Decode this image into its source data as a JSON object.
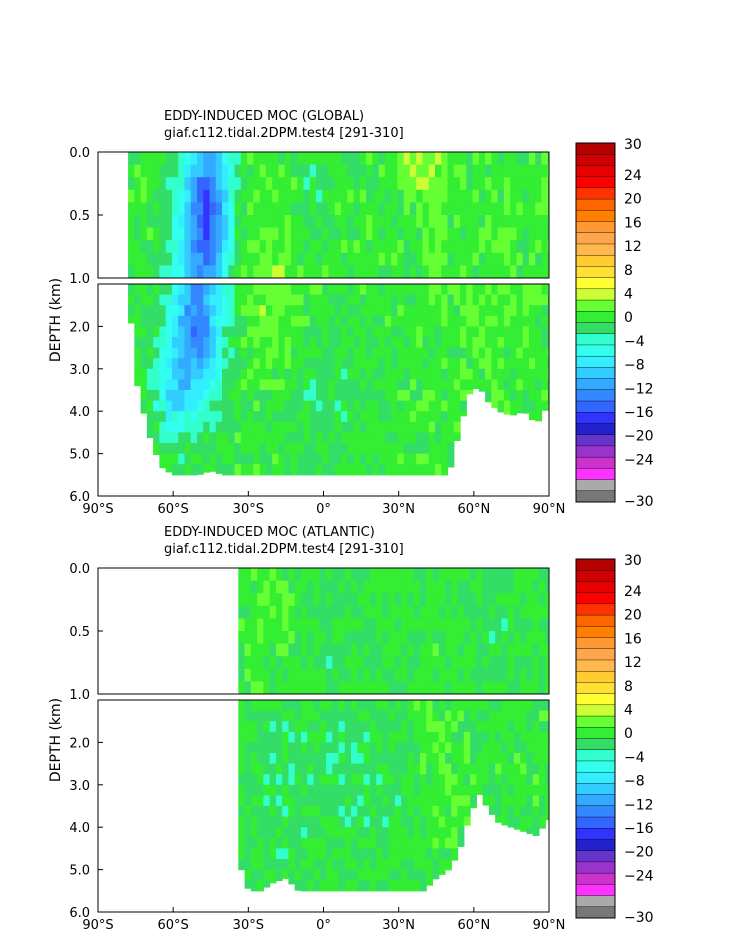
{
  "chart_data": [
    {
      "type": "heatmap",
      "title": "EDDY-INDUCED MOC (GLOBAL)",
      "subtitle": "giaf.c112.tidal.2DPM.test4 [291-310]",
      "ylabel": "DEPTH (km)",
      "xlabel": "",
      "x_ticks": [
        "90°S",
        "60°S",
        "30°S",
        "0°",
        "30°N",
        "60°N",
        "90°N"
      ],
      "upper_y_ticks": [
        "0.0",
        "0.5",
        "1.0"
      ],
      "lower_y_ticks": [
        "2.0",
        "3.0",
        "4.0",
        "5.0",
        "6.0"
      ],
      "xlim": [
        -90,
        90
      ],
      "ylim_upper_km": [
        0,
        1
      ],
      "ylim_lower_km": [
        1,
        6
      ],
      "colorbar": {
        "labels": [
          "30",
          "24",
          "20",
          "16",
          "12",
          "8",
          "4",
          "0",
          "-4",
          "-8",
          "-12",
          "-16",
          "-20",
          "-24",
          "-30"
        ],
        "min": -30,
        "max": 30
      },
      "ocean_extent": {
        "lat": [
          -78,
          -75,
          -70,
          -65,
          -60,
          -55,
          -50,
          -45,
          -40,
          -35,
          -30,
          -20,
          -10,
          0,
          10,
          20,
          30,
          40,
          50,
          54,
          58,
          62,
          66,
          70,
          75,
          80,
          85,
          90
        ],
        "bottom_km": [
          1.0,
          3.2,
          4.5,
          5.3,
          5.5,
          5.5,
          5.5,
          5.4,
          5.5,
          5.5,
          5.5,
          5.5,
          5.5,
          5.5,
          5.5,
          5.5,
          5.5,
          5.5,
          5.5,
          4.5,
          3.6,
          3.4,
          3.8,
          4.0,
          4.1,
          4.0,
          4.3,
          3.8
        ]
      },
      "features": [
        {
          "lat": -50,
          "depth_km": 1.9,
          "lat_halfwidth": 10,
          "depth_halfwidth": 1.9,
          "value": -13
        },
        {
          "lat": -45,
          "depth_km": 0.4,
          "lat_halfwidth": 8,
          "depth_halfwidth": 0.5,
          "value": -10
        },
        {
          "lat": -60,
          "depth_km": 3.5,
          "lat_halfwidth": 8,
          "depth_halfwidth": 1.2,
          "value": -6
        },
        {
          "lat": -20,
          "depth_km": 1.8,
          "lat_halfwidth": 12,
          "depth_halfwidth": 1.5,
          "value": 2.5
        },
        {
          "lat": 38,
          "depth_km": 0.15,
          "lat_halfwidth": 8,
          "depth_halfwidth": 0.25,
          "value": 3
        },
        {
          "lat": 45,
          "depth_km": 0.8,
          "lat_halfwidth": 6,
          "depth_halfwidth": 1.2,
          "value": 1.5
        },
        {
          "lat": 0,
          "depth_km": 3.5,
          "lat_halfwidth": 20,
          "depth_halfwidth": 1.8,
          "value": -1.5
        },
        {
          "lat": 70,
          "depth_km": 1.5,
          "lat_halfwidth": 15,
          "depth_halfwidth": 1.5,
          "value": 1
        },
        {
          "lat": -5,
          "depth_km": 0.3,
          "lat_halfwidth": 6,
          "depth_halfwidth": 0.4,
          "value": -2
        }
      ],
      "background_value": 0.7
    },
    {
      "type": "heatmap",
      "title": "EDDY-INDUCED MOC (ATLANTIC)",
      "subtitle": "giaf.c112.tidal.2DPM.test4 [291-310]",
      "ylabel": "DEPTH (km)",
      "xlabel": "",
      "x_ticks": [
        "90°S",
        "60°S",
        "30°S",
        "0°",
        "30°N",
        "60°N",
        "90°N"
      ],
      "upper_y_ticks": [
        "0.0",
        "0.5",
        "1.0"
      ],
      "lower_y_ticks": [
        "2.0",
        "3.0",
        "4.0",
        "5.0",
        "6.0"
      ],
      "xlim": [
        -90,
        90
      ],
      "ylim_upper_km": [
        0,
        1
      ],
      "ylim_lower_km": [
        1,
        6
      ],
      "colorbar": {
        "labels": [
          "30",
          "24",
          "20",
          "16",
          "12",
          "8",
          "4",
          "0",
          "-4",
          "-8",
          "-12",
          "-16",
          "-20",
          "-24",
          "-30"
        ],
        "min": -30,
        "max": 30
      },
      "ocean_extent": {
        "lat_start": -34,
        "lat": [
          -34,
          -32,
          -30,
          -25,
          -20,
          -15,
          -10,
          -5,
          0,
          10,
          20,
          30,
          40,
          45,
          50,
          54,
          58,
          62,
          66,
          70,
          75,
          80,
          85,
          90
        ],
        "bottom_km": [
          5.0,
          5.0,
          5.5,
          5.5,
          5.3,
          5.2,
          5.5,
          5.5,
          5.5,
          5.5,
          5.5,
          5.5,
          5.5,
          5.2,
          5.0,
          4.6,
          3.8,
          3.2,
          3.6,
          3.9,
          4.0,
          4.1,
          4.2,
          3.8
        ]
      },
      "features": [
        {
          "lat": -15,
          "depth_km": 3.0,
          "lat_halfwidth": 15,
          "depth_halfwidth": 2.5,
          "value": -1.5
        },
        {
          "lat": 20,
          "depth_km": 3.2,
          "lat_halfwidth": 14,
          "depth_halfwidth": 2.0,
          "value": -1.5
        },
        {
          "lat": -20,
          "depth_km": 0.4,
          "lat_halfwidth": 10,
          "depth_halfwidth": 0.6,
          "value": 1.5
        },
        {
          "lat": 5,
          "depth_km": 1.5,
          "lat_halfwidth": 8,
          "depth_halfwidth": 2.0,
          "value": -1.2
        },
        {
          "lat": 65,
          "depth_km": 0.5,
          "lat_halfwidth": 20,
          "depth_halfwidth": 0.8,
          "value": -1
        },
        {
          "lat": 50,
          "depth_km": 2.5,
          "lat_halfwidth": 10,
          "depth_halfwidth": 2.0,
          "value": 1
        }
      ],
      "background_value": 0.5
    }
  ],
  "colors": {
    "palette_top_to_bottom": [
      "#b30000",
      "#cc0000",
      "#e60000",
      "#ff0000",
      "#ff3300",
      "#ff6600",
      "#ff8000",
      "#ff9933",
      "#ffa64d",
      "#ffb84d",
      "#ffcc33",
      "#ffe033",
      "#ffff33",
      "#ccff33",
      "#66ff33",
      "#33ee33",
      "#33dd66",
      "#33ffcc",
      "#33ffee",
      "#33eeff",
      "#33ccff",
      "#33aaff",
      "#3388ff",
      "#3366ff",
      "#3333ff",
      "#2222cc",
      "#6633cc",
      "#9933cc",
      "#cc33cc",
      "#ff33ff",
      "#aaaaaa",
      "#777777"
    ]
  }
}
